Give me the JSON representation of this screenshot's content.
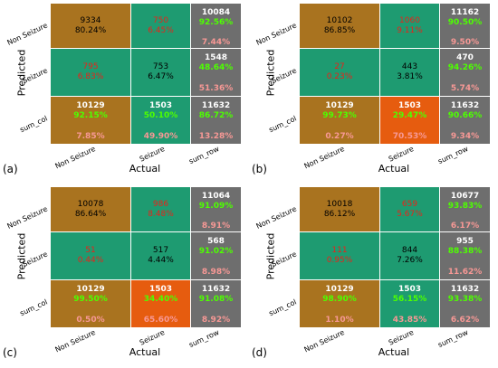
{
  "axis": {
    "x": "Actual",
    "y": "Predicted"
  },
  "rows": [
    "Non Seizure",
    "Seizure",
    "sum_col"
  ],
  "cols": [
    "Non Seizure",
    "Seizure",
    "sum_row"
  ],
  "colors": {
    "gold": "#a9731f",
    "teal": "#1e9b71",
    "grey": "#6e6e6e",
    "orange": "#e65c0f"
  },
  "panels": [
    {
      "label": "(a)",
      "cells": [
        {
          "a": "9334",
          "b": "80.24%"
        },
        {
          "a": "750",
          "b": "6.45%"
        },
        {
          "a": "10084",
          "b": "92.56%",
          "c": "7.44%"
        },
        {
          "a": "795",
          "b": "6.83%"
        },
        {
          "a": "753",
          "b": "6.47%"
        },
        {
          "a": "1548",
          "b": "48.64%",
          "c": "51.36%"
        },
        {
          "a": "10129",
          "b": "92.15%",
          "c": "7.85%"
        },
        {
          "a": "1503",
          "b": "50.10%",
          "c": "49.90%"
        },
        {
          "a": "11632",
          "b": "86.72%",
          "c": "13.28%"
        }
      ]
    },
    {
      "label": "(b)",
      "cells": [
        {
          "a": "10102",
          "b": "86.85%"
        },
        {
          "a": "1060",
          "b": "9.11%"
        },
        {
          "a": "11162",
          "b": "90.50%",
          "c": "9.50%"
        },
        {
          "a": "27",
          "b": "0.23%"
        },
        {
          "a": "443",
          "b": "3.81%"
        },
        {
          "a": "470",
          "b": "94.26%",
          "c": "5.74%"
        },
        {
          "a": "10129",
          "b": "99.73%",
          "c": "0.27%"
        },
        {
          "a": "1503",
          "b": "29.47%",
          "c": "70.53%"
        },
        {
          "a": "11632",
          "b": "90.66%",
          "c": "9.34%"
        }
      ]
    },
    {
      "label": "(c)",
      "cells": [
        {
          "a": "10078",
          "b": "86.64%"
        },
        {
          "a": "986",
          "b": "8.48%"
        },
        {
          "a": "11064",
          "b": "91.09%",
          "c": "8.91%"
        },
        {
          "a": "51",
          "b": "0.44%"
        },
        {
          "a": "517",
          "b": "4.44%"
        },
        {
          "a": "568",
          "b": "91.02%",
          "c": "8.98%"
        },
        {
          "a": "10129",
          "b": "99.50%",
          "c": "0.50%"
        },
        {
          "a": "1503",
          "b": "34.40%",
          "c": "65.60%"
        },
        {
          "a": "11632",
          "b": "91.08%",
          "c": "8.92%"
        }
      ]
    },
    {
      "label": "(d)",
      "cells": [
        {
          "a": "10018",
          "b": "86.12%"
        },
        {
          "a": "659",
          "b": "5.67%"
        },
        {
          "a": "10677",
          "b": "93.83%",
          "c": "6.17%"
        },
        {
          "a": "111",
          "b": "0.95%"
        },
        {
          "a": "844",
          "b": "7.26%"
        },
        {
          "a": "955",
          "b": "88.38%",
          "c": "11.62%"
        },
        {
          "a": "10129",
          "b": "98.90%",
          "c": "1.10%"
        },
        {
          "a": "1503",
          "b": "56.15%",
          "c": "43.85%"
        },
        {
          "a": "11632",
          "b": "93.38%",
          "c": "6.62%"
        }
      ]
    }
  ]
}
